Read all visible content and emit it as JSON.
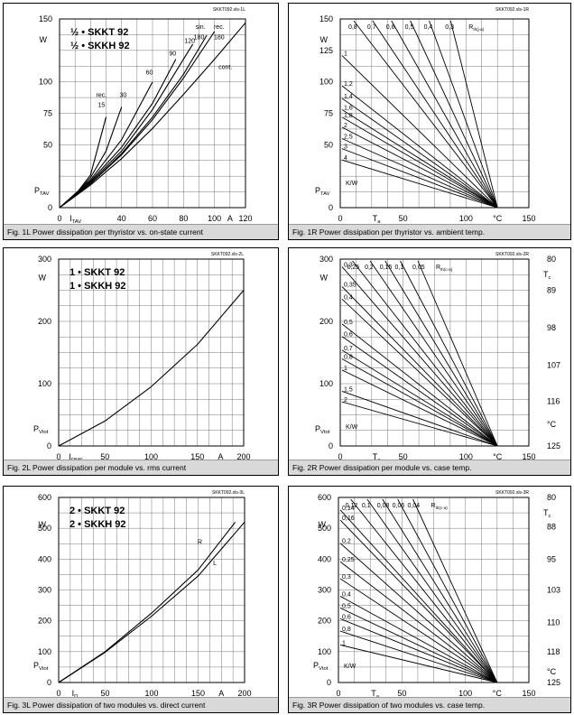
{
  "charts": [
    {
      "id": "1L",
      "file_code": "SKKT092.xls-1L",
      "caption": "Fig. 1L Power dissipation per thyristor vs. on-state current",
      "title_lines": [
        "½ • SKKT 92",
        "½ • SKKH 92"
      ],
      "chart_data": {
        "type": "line",
        "xlim": [
          0,
          120
        ],
        "ylim": [
          0,
          150
        ],
        "x_ticks": [
          0,
          20,
          40,
          60,
          80,
          100,
          120
        ],
        "x_tick_labels": [
          "0",
          "",
          "40",
          "60",
          "80",
          "100",
          "120"
        ],
        "y_ticks": [
          0,
          25,
          50,
          75,
          100,
          125,
          150
        ],
        "y_tick_labels": [
          "0",
          "",
          "50",
          "75",
          "100",
          "",
          "150"
        ],
        "xunit": "A",
        "yunit": "W",
        "ylabel": "P",
        "ylabel_sub": "TAV",
        "xlabel": "I",
        "xlabel_sub": "TAV",
        "series": [
          {
            "name": "rec. 15",
            "points": [
              [
                0,
                0
              ],
              [
                10,
                10
              ],
              [
                20,
                26
              ],
              [
                30,
                72
              ]
            ]
          },
          {
            "name": "30",
            "points": [
              [
                0,
                0
              ],
              [
                10,
                10
              ],
              [
                20,
                24
              ],
              [
                30,
                45
              ],
              [
                40,
                80
              ]
            ]
          },
          {
            "name": "60",
            "points": [
              [
                0,
                0
              ],
              [
                20,
                22
              ],
              [
                40,
                54
              ],
              [
                60,
                100
              ]
            ]
          },
          {
            "name": "90",
            "points": [
              [
                0,
                0
              ],
              [
                20,
                21
              ],
              [
                40,
                48
              ],
              [
                60,
                83
              ],
              [
                75,
                118
              ]
            ]
          },
          {
            "name": "120",
            "points": [
              [
                0,
                0
              ],
              [
                20,
                20
              ],
              [
                40,
                45
              ],
              [
                60,
                78
              ],
              [
                80,
                118
              ],
              [
                86,
                130
              ]
            ]
          },
          {
            "name": "sin. 180",
            "points": [
              [
                0,
                0
              ],
              [
                20,
                19
              ],
              [
                40,
                43
              ],
              [
                60,
                72
              ],
              [
                80,
                106
              ],
              [
                95,
                137
              ]
            ]
          },
          {
            "name": "rec. 180",
            "points": [
              [
                0,
                0
              ],
              [
                20,
                19
              ],
              [
                40,
                42
              ],
              [
                60,
                70
              ],
              [
                80,
                103
              ],
              [
                100,
                140
              ]
            ]
          },
          {
            "name": "cont.",
            "points": [
              [
                0,
                0
              ],
              [
                20,
                18
              ],
              [
                40,
                39
              ],
              [
                60,
                63
              ],
              [
                80,
                90
              ],
              [
                100,
                118
              ],
              [
                120,
                147
              ]
            ]
          }
        ],
        "annotations": [
          {
            "text": "rec.",
            "x": 27,
            "y": 88
          },
          {
            "text": "15",
            "x": 27,
            "y": 80
          },
          {
            "text": "30",
            "x": 41,
            "y": 88
          },
          {
            "text": "60",
            "x": 58,
            "y": 106
          },
          {
            "text": "90",
            "x": 73,
            "y": 121
          },
          {
            "text": "120",
            "x": 84,
            "y": 131
          },
          {
            "text": "sin.",
            "x": 91,
            "y": 142
          },
          {
            "text": "180",
            "x": 90,
            "y": 134
          },
          {
            "text": "rec.",
            "x": 103,
            "y": 142
          },
          {
            "text": "180",
            "x": 103,
            "y": 134
          },
          {
            "text": "cont.",
            "x": 107,
            "y": 110
          }
        ]
      }
    },
    {
      "id": "1R",
      "file_code": "SKKT092.xls-1R",
      "caption": "Fig. 1R Power dissipation per thyristor vs. ambient temp.",
      "chart_data": {
        "type": "line",
        "xlim": [
          0,
          150
        ],
        "ylim": [
          0,
          150
        ],
        "x_ticks": [
          0,
          25,
          50,
          75,
          100,
          125,
          150
        ],
        "x_tick_labels": [
          "0",
          "",
          "50",
          "",
          "100",
          "°C",
          "150"
        ],
        "y_ticks": [
          0,
          25,
          50,
          75,
          100,
          125,
          150
        ],
        "y_tick_labels": [
          "0",
          "",
          "50",
          "75",
          "100",
          "125",
          "150"
        ],
        "yunit": "W",
        "ylabel": "P",
        "ylabel_sub": "TAV",
        "xlabel": "T",
        "xlabel_sub": "a",
        "convergence": [
          125,
          0
        ],
        "series_label": "R",
        "series_label_sub": "th(j-a)",
        "top_labels": [
          "0,8",
          "0,7",
          "0,6",
          "0,5",
          "0,4",
          "0,3"
        ],
        "top_label_x": [
          5,
          20,
          35,
          50,
          65,
          82
        ],
        "left_labels": [
          "1",
          "1,2",
          "1,4",
          "1,6",
          "1,8",
          "2",
          "2,5",
          "3",
          "4",
          "K/W"
        ],
        "left_label_y": [
          118,
          94,
          84,
          75,
          69,
          61,
          52,
          44,
          35,
          20
        ]
      }
    },
    {
      "id": "2L",
      "file_code": "SKKT092.xls-2L",
      "caption": "Fig. 2L Power dissipation per module vs. rms current",
      "title_lines": [
        "1 • SKKT 92",
        "1 • SKKH 92"
      ],
      "chart_data": {
        "type": "line",
        "xlim": [
          0,
          200
        ],
        "ylim": [
          0,
          300
        ],
        "x_ticks": [
          0,
          25,
          50,
          75,
          100,
          125,
          150,
          175,
          200
        ],
        "x_tick_labels": [
          "0",
          "",
          "50",
          "",
          "100",
          "",
          "150",
          "A",
          "200"
        ],
        "y_ticks": [
          0,
          50,
          100,
          150,
          200,
          250,
          300
        ],
        "y_tick_labels": [
          "0",
          "",
          "100",
          "",
          "200",
          "",
          "300"
        ],
        "yunit": "W",
        "ylabel": "P",
        "ylabel_sub": "Vtot",
        "xlabel": "I",
        "xlabel_sub": "RMS",
        "series": [
          {
            "name": "",
            "points": [
              [
                0,
                0
              ],
              [
                50,
                40
              ],
              [
                100,
                95
              ],
              [
                150,
                163
              ],
              [
                200,
                250
              ]
            ]
          }
        ]
      }
    },
    {
      "id": "2R",
      "file_code": "SKKT092.xls-2R",
      "caption": "Fig. 2R Power dissipation per module vs. case temp.",
      "chart_data": {
        "type": "line",
        "xlim": [
          0,
          150
        ],
        "ylim": [
          0,
          300
        ],
        "x_ticks": [
          0,
          25,
          50,
          75,
          100,
          125,
          150
        ],
        "x_tick_labels": [
          "0",
          "",
          "50",
          "",
          "100",
          "°C",
          "150"
        ],
        "y_ticks": [
          0,
          50,
          100,
          150,
          200,
          250,
          300
        ],
        "y_tick_labels": [
          "0",
          "",
          "100",
          "",
          "200",
          "",
          "300"
        ],
        "yunit": "W",
        "ylabel": "P",
        "ylabel_sub": "Vtot",
        "xlabel": "T",
        "xlabel_sub": "a",
        "convergence": [
          125,
          0
        ],
        "series_label": "R",
        "series_label_sub": "th(c-a)",
        "top_labels": [
          "0,25",
          "0,2",
          "0,15",
          "0,1",
          "0,05"
        ],
        "top_label_x": [
          4,
          18,
          30,
          42,
          56
        ],
        "left_labels": [
          "0,3",
          "0,35",
          "0,4",
          "0,5",
          "0,6",
          "0,7",
          "0,8",
          "1",
          "1,5",
          "2",
          "K/W"
        ],
        "left_label_y": [
          282,
          250,
          230,
          190,
          170,
          148,
          134,
          116,
          82,
          65,
          32
        ],
        "right_axis_label": "T",
        "right_axis_sub": "c",
        "right_ticks": [
          "80",
          "89",
          "98",
          "107",
          "116",
          "°C",
          "125"
        ],
        "right_tick_values": [
          300,
          250,
          190,
          130,
          72,
          35,
          0
        ]
      }
    },
    {
      "id": "3L",
      "file_code": "SKKT092.xls-3L",
      "caption": "Fig. 3L Power dissipation of two modules vs. direct current",
      "title_lines": [
        "2 • SKKT 92",
        "2 • SKKH 92"
      ],
      "chart_data": {
        "type": "line",
        "xlim": [
          0,
          200
        ],
        "ylim": [
          0,
          600
        ],
        "x_ticks": [
          0,
          50,
          100,
          150,
          200
        ],
        "x_tick_labels": [
          "0",
          "50",
          "100",
          "150",
          "200"
        ],
        "extra_x_label": "A",
        "y_ticks": [
          0,
          100,
          200,
          300,
          400,
          500,
          600
        ],
        "y_tick_labels": [
          "0",
          "100",
          "200",
          "300",
          "400",
          "500",
          "600"
        ],
        "yunit": "W",
        "ylabel": "P",
        "ylabel_sub": "Vtot",
        "xlabel": "I",
        "xlabel_sub": "D",
        "series": [
          {
            "name": "R",
            "points": [
              [
                0,
                0
              ],
              [
                50,
                100
              ],
              [
                100,
                225
              ],
              [
                150,
                365
              ],
              [
                190,
                520
              ]
            ]
          },
          {
            "name": "L",
            "points": [
              [
                0,
                0
              ],
              [
                50,
                98
              ],
              [
                100,
                215
              ],
              [
                150,
                345
              ],
              [
                200,
                520
              ]
            ]
          }
        ],
        "annotations": [
          {
            "text": "R",
            "x": 152,
            "y": 450
          },
          {
            "text": "L",
            "x": 168,
            "y": 380
          }
        ]
      }
    },
    {
      "id": "3R",
      "file_code": "SKKT092.xls-3R",
      "caption": "Fig. 3R Power dissipation of two modules vs. case temp.",
      "chart_data": {
        "type": "line",
        "xlim": [
          0,
          150
        ],
        "ylim": [
          0,
          600
        ],
        "x_ticks": [
          0,
          25,
          50,
          75,
          100,
          125,
          150
        ],
        "x_tick_labels": [
          "0",
          "",
          "50",
          "",
          "100",
          "°C",
          "150"
        ],
        "y_ticks": [
          0,
          100,
          200,
          300,
          400,
          500,
          600
        ],
        "y_tick_labels": [
          "0",
          "100",
          "200",
          "300",
          "400",
          "500",
          "600"
        ],
        "yunit": "W",
        "ylabel": "P",
        "ylabel_sub": "Vtot",
        "xlabel": "T",
        "xlabel_sub": "a",
        "convergence": [
          125,
          0
        ],
        "series_label": "R",
        "series_label_sub": "th(c-a)",
        "top_labels": [
          "0,12",
          "0,1",
          "0,08",
          "0,06",
          "0,04"
        ],
        "top_label_x": [
          4,
          17,
          29,
          41,
          53
        ],
        "left_labels": [
          "0,14",
          "0,16",
          "0,2",
          "0,25",
          "0,3",
          "0,4",
          "0,5",
          "0,6",
          "0,8",
          "1",
          "K/W"
        ],
        "left_label_y": [
          548,
          515,
          440,
          380,
          325,
          268,
          230,
          195,
          155,
          110,
          55
        ],
        "right_axis_label": "T",
        "right_axis_sub": "c",
        "right_ticks": [
          "80",
          "88",
          "95",
          "103",
          "110",
          "118",
          "°C",
          "125"
        ],
        "right_tick_values": [
          600,
          505,
          400,
          300,
          195,
          100,
          35,
          0
        ]
      }
    }
  ]
}
